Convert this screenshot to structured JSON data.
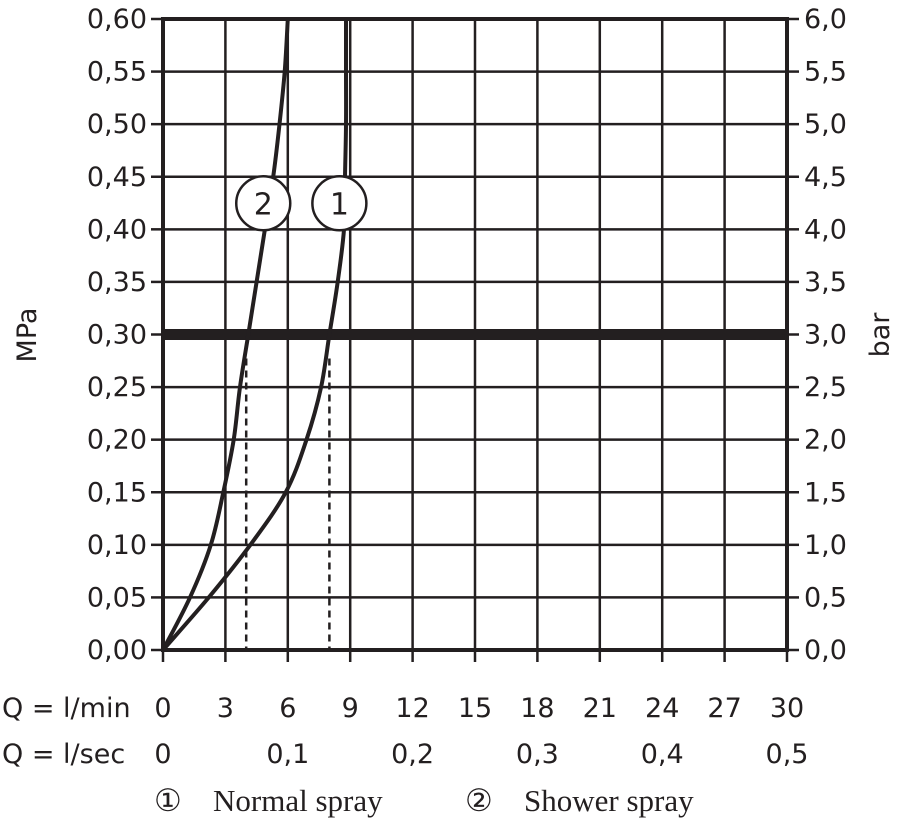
{
  "chart_data": {
    "type": "line",
    "ylabel_left": "MPa",
    "ylabel_right": "bar",
    "y_ticks_left": [
      "0,00",
      "0,05",
      "0,10",
      "0,15",
      "0,20",
      "0,25",
      "0,30",
      "0,35",
      "0,40",
      "0,45",
      "0,50",
      "0,55",
      "0,60"
    ],
    "y_ticks_right": [
      "0,0",
      "0,5",
      "1,0",
      "1,5",
      "2,0",
      "2,5",
      "3,0",
      "3,5",
      "4,0",
      "4,5",
      "5,0",
      "5,5",
      "6,0"
    ],
    "ylim": [
      0,
      0.6
    ],
    "xlim": [
      0,
      30
    ],
    "x_axis_lmin": {
      "label": "Q = l/min",
      "ticks": [
        "0",
        "3",
        "6",
        "9",
        "12",
        "15",
        "18",
        "21",
        "24",
        "27",
        "30"
      ]
    },
    "x_axis_lsec": {
      "label": "Q = l/sec",
      "ticks": [
        "0",
        "0,1",
        "0,2",
        "0,3",
        "0,4",
        "0,5"
      ]
    },
    "x_unit": "l/min",
    "y_unit": "MPa",
    "grid": true,
    "reference_line": {
      "y": 0.3
    },
    "series": [
      {
        "marker": "1",
        "points": [
          [
            0,
            0
          ],
          [
            2.2,
            0.05
          ],
          [
            4.2,
            0.1
          ],
          [
            5.9,
            0.15
          ],
          [
            6.9,
            0.2
          ],
          [
            7.6,
            0.25
          ],
          [
            8.0,
            0.3
          ],
          [
            8.4,
            0.35
          ],
          [
            8.7,
            0.4
          ],
          [
            8.75,
            0.45
          ],
          [
            8.8,
            0.5
          ],
          [
            8.8,
            0.55
          ],
          [
            8.8,
            0.6
          ]
        ],
        "drop_line_x": 8.0
      },
      {
        "marker": "2",
        "points": [
          [
            0,
            0
          ],
          [
            1.3,
            0.05
          ],
          [
            2.3,
            0.1
          ],
          [
            2.9,
            0.15
          ],
          [
            3.4,
            0.2
          ],
          [
            3.7,
            0.25
          ],
          [
            4.1,
            0.3
          ],
          [
            4.5,
            0.35
          ],
          [
            4.9,
            0.4
          ],
          [
            5.3,
            0.45
          ],
          [
            5.6,
            0.5
          ],
          [
            5.85,
            0.55
          ],
          [
            6.0,
            0.6
          ]
        ],
        "drop_line_x": 4.0
      }
    ],
    "legend": [
      {
        "marker": "①",
        "label": "Normal spray"
      },
      {
        "marker": "②",
        "label": "Shower spray"
      }
    ]
  }
}
